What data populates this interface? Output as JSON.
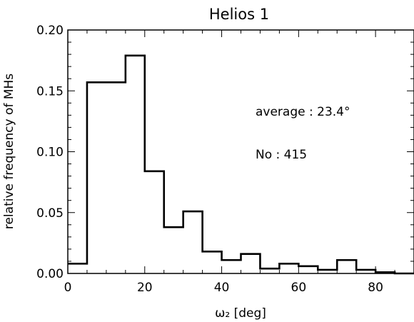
{
  "chart_data": {
    "type": "bar",
    "title": "Helios 1",
    "xlabel": "ω₂ [deg]",
    "ylabel": "relative frequency of MHs",
    "xlim": [
      0,
      90
    ],
    "ylim": [
      0,
      0.2
    ],
    "x_ticks": [
      "0",
      "20",
      "40",
      "60",
      "80"
    ],
    "y_ticks": [
      "0.00",
      "0.05",
      "0.10",
      "0.15",
      "0.20"
    ],
    "bin_edges": [
      0,
      5,
      10,
      15,
      20,
      25,
      30,
      35,
      40,
      45,
      50,
      55,
      60,
      65,
      70,
      75,
      80,
      85,
      90
    ],
    "values": [
      0.008,
      0.157,
      0.157,
      0.179,
      0.084,
      0.038,
      0.051,
      0.018,
      0.011,
      0.016,
      0.004,
      0.008,
      0.006,
      0.003,
      0.011,
      0.003,
      0.001,
      0.0
    ],
    "annotations": {
      "average": "average : 23.4°",
      "count": "No : 415"
    },
    "line_color": "#000000",
    "grid": false
  }
}
